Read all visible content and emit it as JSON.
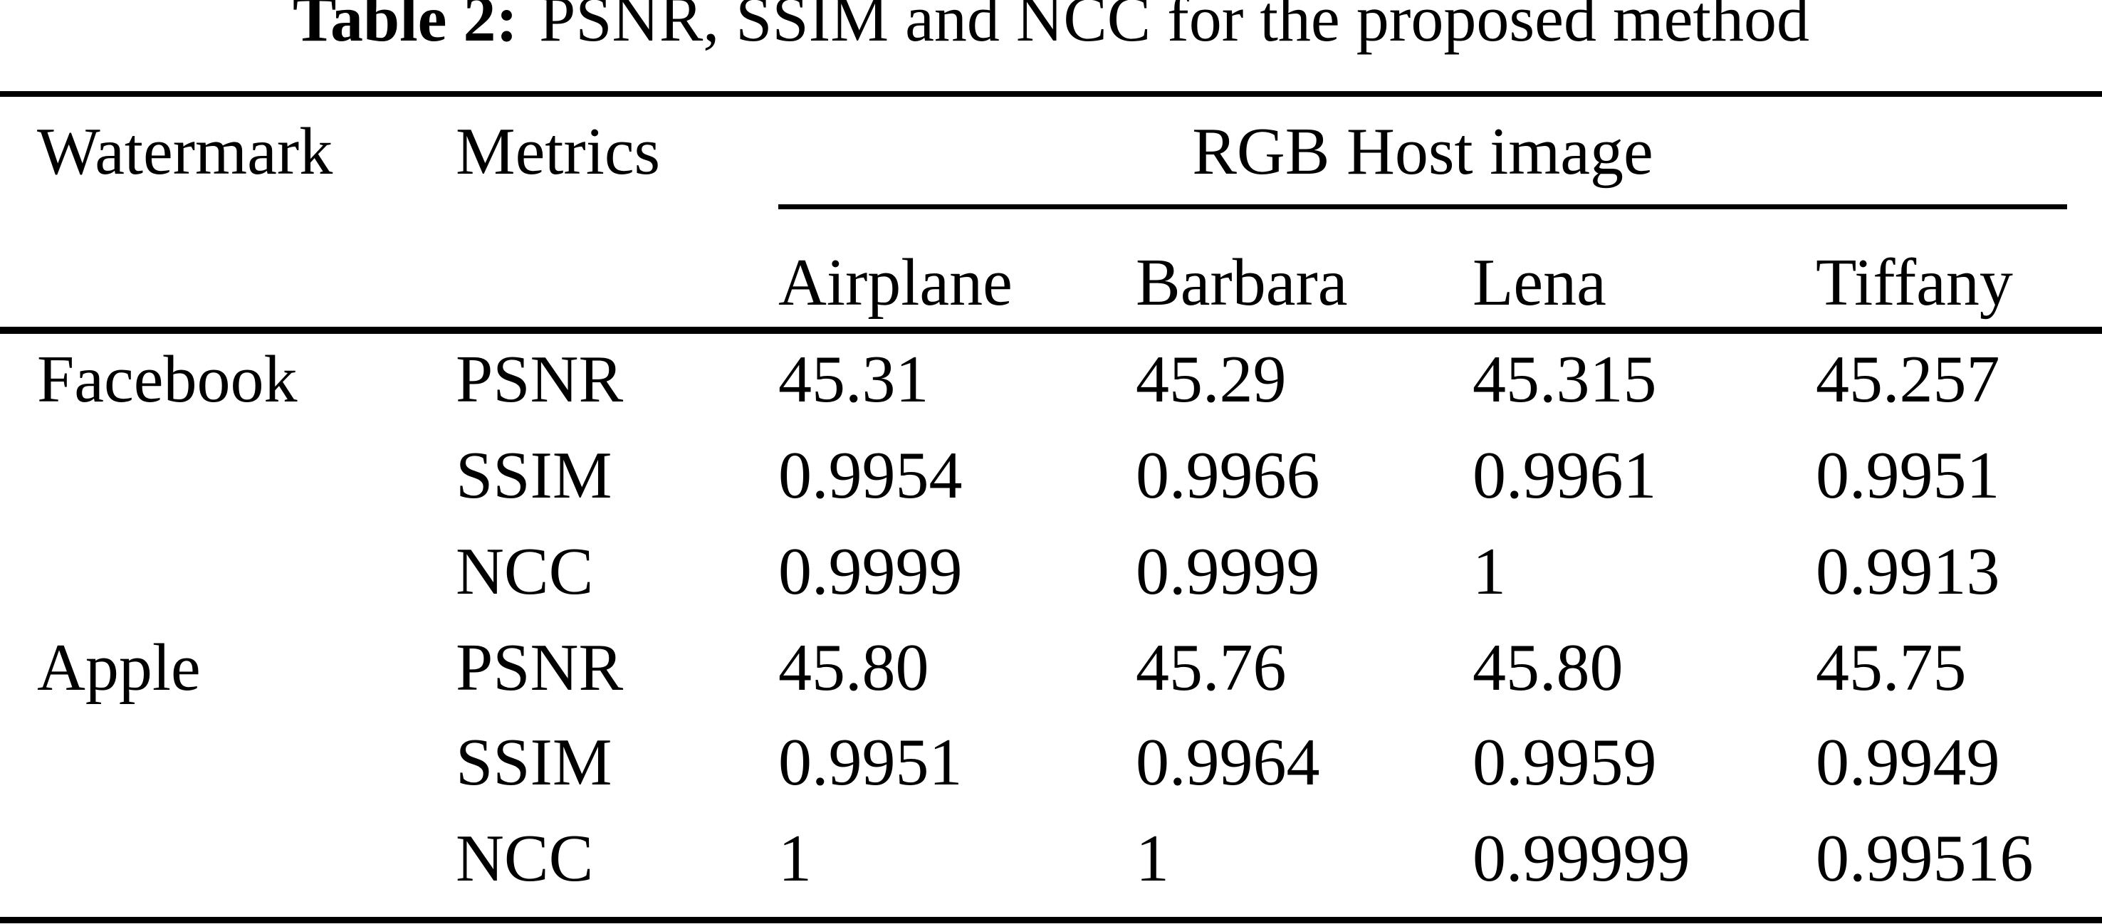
{
  "page": {
    "background_color": "#ffffff",
    "text_color": "#000000"
  },
  "title": {
    "prefix": "Table 2:",
    "rest": "PSNR, SSIM and NCC for the proposed method"
  },
  "table": {
    "col_headers": {
      "watermark": "Watermark",
      "metrics": "Metrics",
      "group": "RGB Host image"
    },
    "host_images": [
      "Airplane",
      "Barbara",
      "Lena",
      "Tiffany"
    ],
    "rows": [
      {
        "watermark": "Facebook",
        "metric": "PSNR",
        "values": [
          "45.31",
          "45.29",
          "45.315",
          "45.257"
        ]
      },
      {
        "watermark": "",
        "metric": "SSIM",
        "values": [
          "0.9954",
          "0.9966",
          "0.9961",
          "0.9951"
        ]
      },
      {
        "watermark": "",
        "metric": "NCC",
        "values": [
          "0.9999",
          "0.9999",
          "1",
          "0.9913"
        ]
      },
      {
        "watermark": "Apple",
        "metric": "PSNR",
        "values": [
          "45.80",
          "45.76",
          "45.80",
          "45.75"
        ]
      },
      {
        "watermark": "",
        "metric": "SSIM",
        "values": [
          "0.9951",
          "0.9964",
          "0.9959",
          "0.9949"
        ]
      },
      {
        "watermark": "",
        "metric": "NCC",
        "values": [
          "1",
          "1",
          "0.99999",
          "0.99516"
        ]
      }
    ]
  }
}
